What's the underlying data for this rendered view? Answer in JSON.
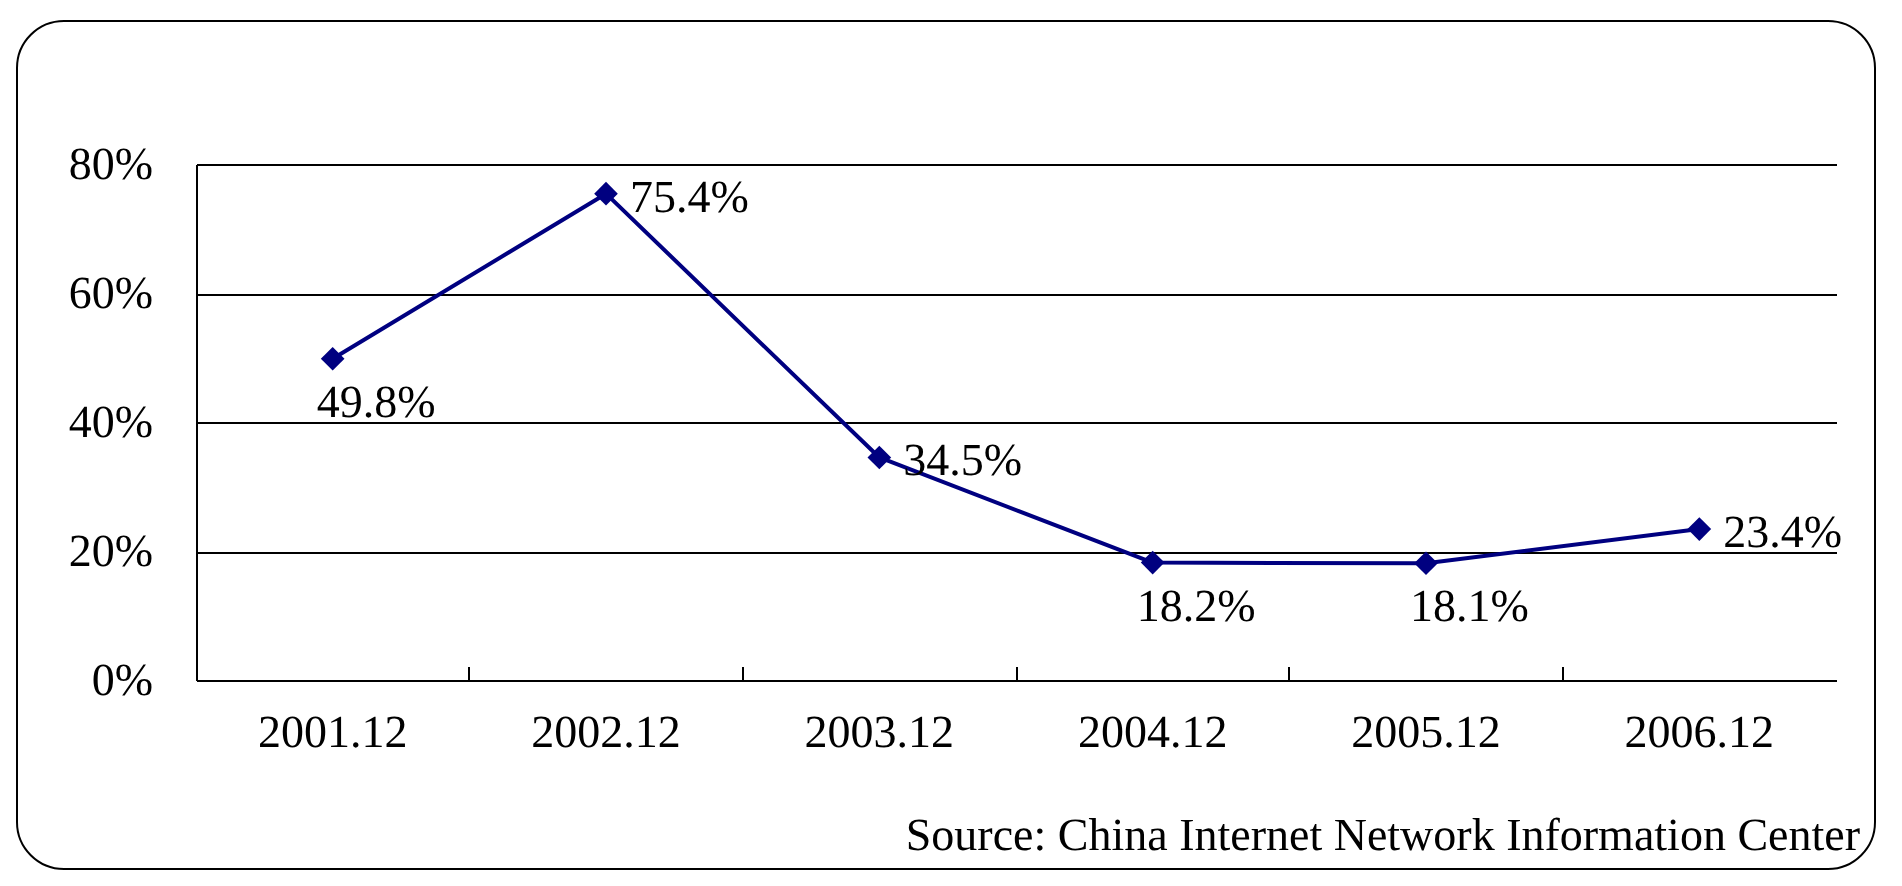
{
  "chart_data": {
    "type": "line",
    "categories": [
      "2001.12",
      "2002.12",
      "2003.12",
      "2004.12",
      "2005.12",
      "2006.12"
    ],
    "values": [
      49.8,
      75.4,
      34.5,
      18.2,
      18.1,
      23.4
    ],
    "color": "#000080",
    "value_labels": [
      "49.8%",
      "75.4%",
      "34.5%",
      "18.2%",
      "18.1%",
      "23.4%"
    ],
    "ylim": [
      0,
      80
    ],
    "yticks": [
      {
        "value": 0,
        "label": "0%"
      },
      {
        "value": 20,
        "label": "20%"
      },
      {
        "value": 40,
        "label": "40%"
      },
      {
        "value": 60,
        "label": "60%"
      },
      {
        "value": 80,
        "label": "80%"
      }
    ],
    "grid": "y",
    "marker": "diamond",
    "line_style": "solid",
    "annotations": [
      "Source: China Internet Network Information Center"
    ]
  }
}
